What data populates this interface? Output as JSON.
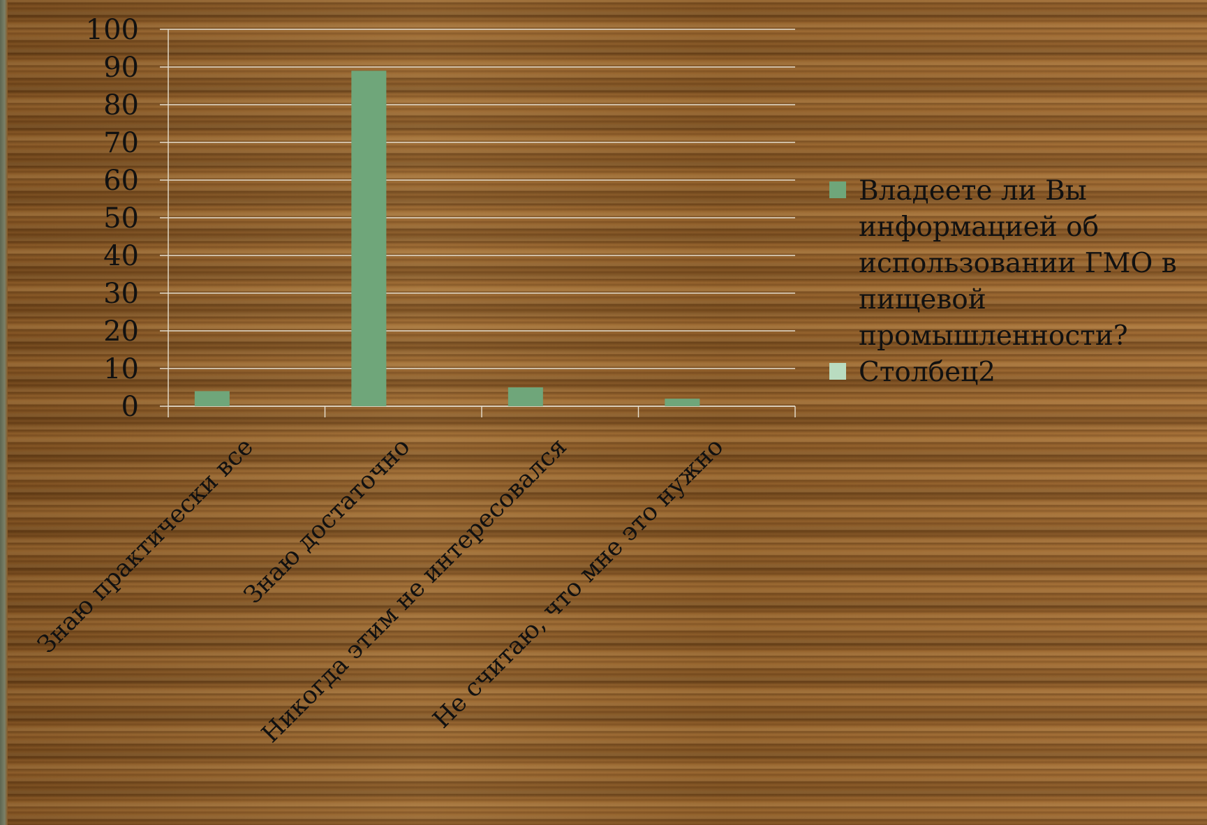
{
  "chart_data": {
    "type": "bar",
    "title": "",
    "xlabel": "",
    "ylabel": "",
    "ylim": [
      0,
      100
    ],
    "yticks": [
      0,
      10,
      20,
      30,
      40,
      50,
      60,
      70,
      80,
      90,
      100
    ],
    "categories": [
      "Знаю практически все",
      "Знаю достаточно",
      "Никогда этим не интересовался",
      "Не считаю, что мне это нужно"
    ],
    "series": [
      {
        "name": "Владеете ли Вы информацией об использовании ГМО в пищевой промышленности?",
        "values": [
          4,
          89,
          5,
          2
        ],
        "color": "#6fa67a"
      },
      {
        "name": "Столбец2",
        "values": [
          0,
          0,
          0,
          0
        ],
        "color": "#b9dcc0"
      }
    ],
    "grid": true,
    "legend_position": "right"
  }
}
